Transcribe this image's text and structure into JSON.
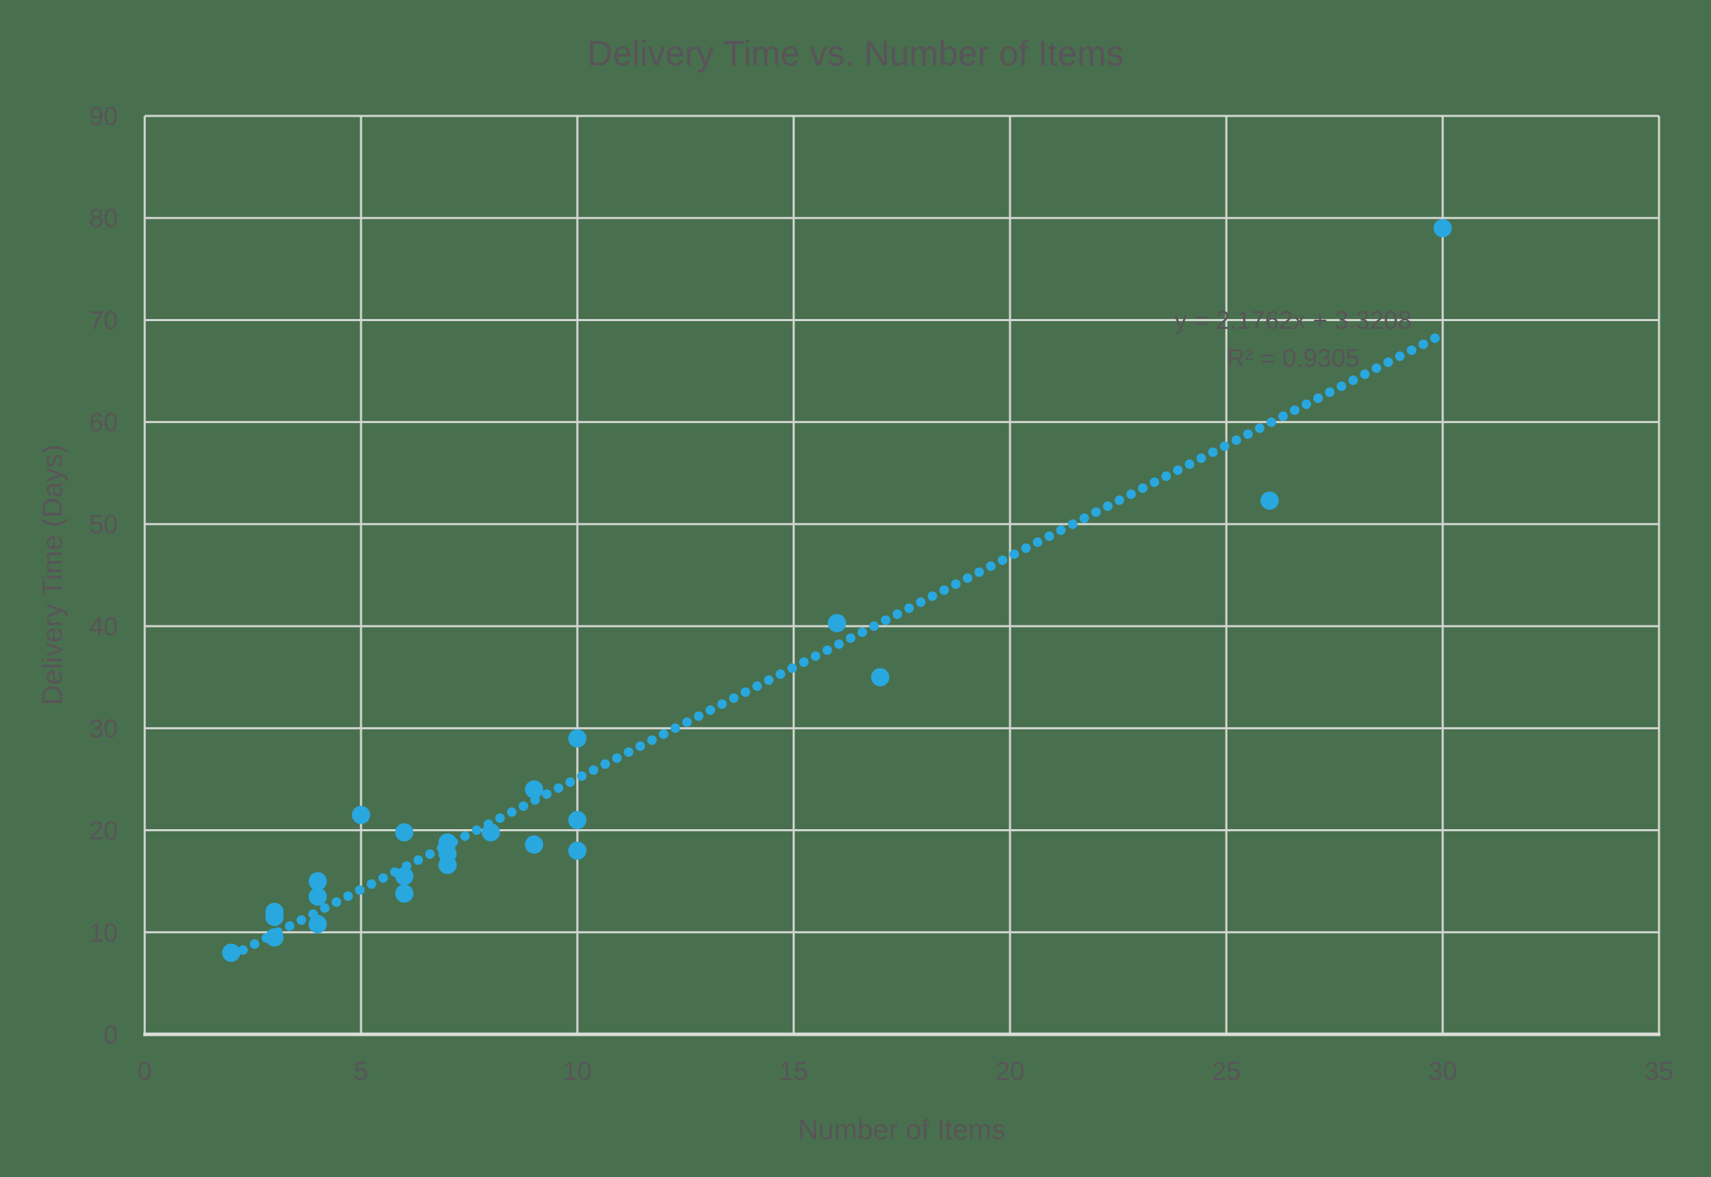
{
  "page": {
    "background": "#48704E"
  },
  "chart_data": {
    "type": "scatter",
    "title": "Delivery Time vs. Number of Items",
    "xlabel": "Number of Items",
    "ylabel": "Delivery Time (Days)",
    "xlim": [
      0,
      35
    ],
    "ylim": [
      0,
      90
    ],
    "xticks": [
      0,
      5,
      10,
      15,
      20,
      25,
      30,
      35
    ],
    "yticks": [
      0,
      10,
      20,
      30,
      40,
      50,
      60,
      70,
      80,
      90
    ],
    "grid": true,
    "legend_position": "none",
    "series": [
      {
        "name": "Delivery Time",
        "points": [
          [
            2,
            8
          ],
          [
            3,
            9.5
          ],
          [
            3,
            11.5
          ],
          [
            3,
            12
          ],
          [
            4,
            10.8
          ],
          [
            4,
            13.5
          ],
          [
            4,
            15
          ],
          [
            5,
            21.5
          ],
          [
            6,
            13.8
          ],
          [
            6,
            15.5
          ],
          [
            6,
            19.8
          ],
          [
            7,
            16.6
          ],
          [
            7,
            17.7
          ],
          [
            7,
            18.8
          ],
          [
            8,
            19.8
          ],
          [
            9,
            18.6
          ],
          [
            9,
            24
          ],
          [
            10,
            18
          ],
          [
            10,
            21
          ],
          [
            10,
            29
          ],
          [
            16,
            40.3
          ],
          [
            17,
            35
          ],
          [
            26,
            52.3
          ],
          [
            30,
            79
          ]
        ]
      }
    ],
    "trendline": {
      "slope": 2.1762,
      "intercept": 3.3208,
      "x_start": 2,
      "x_end": 30,
      "style": "dotted",
      "equation_label": "y = 2.1762x + 3.3208",
      "r2_label": "R² = 0.9305"
    },
    "colors": {
      "background": "#48704E",
      "marker": "#29A7DF",
      "trendline": "#29A7DF",
      "gridline": "#D2D6D1",
      "axis_line": "#DBDEDA",
      "text": "#595459"
    }
  }
}
